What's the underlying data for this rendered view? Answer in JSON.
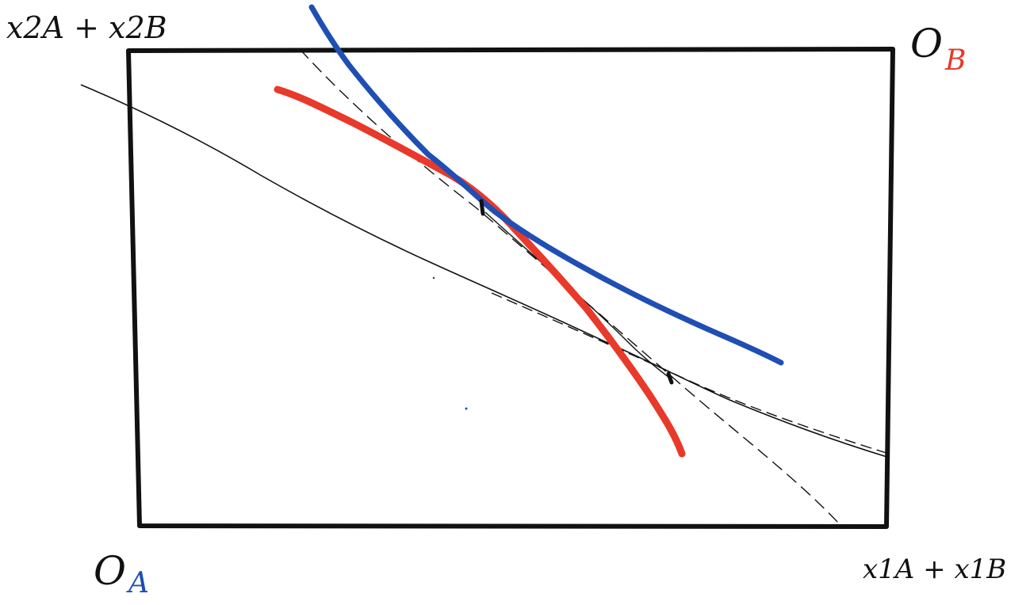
{
  "labels": {
    "origin_a": {
      "letter": "O",
      "subscript": "A"
    },
    "origin_b": {
      "letter": "O",
      "subscript": "B"
    },
    "top_left": "x2A + x2B",
    "bottom_right": "x1A + x1B"
  },
  "colors": {
    "box": "#111111",
    "agent_a": "#1f4fb4",
    "agent_b": "#e8392a",
    "budget_lines": "#111111"
  }
}
